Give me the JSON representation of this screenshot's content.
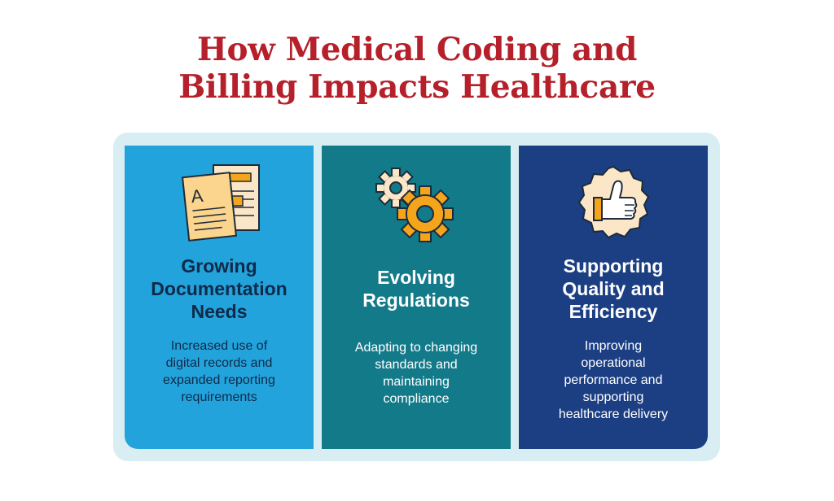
{
  "title": {
    "line1": "How Medical Coding and",
    "line2": "Billing Impacts Healthcare"
  },
  "cards": [
    {
      "icon": "documents-icon",
      "heading": [
        "Growing",
        "Documentation",
        "Needs"
      ],
      "description": [
        "Increased use of",
        "digital records and",
        "expanded reporting",
        "requirements"
      ]
    },
    {
      "icon": "gears-icon",
      "heading": [
        "Evolving",
        "Regulations"
      ],
      "description": [
        "Adapting to changing",
        "standards and",
        "maintaining",
        "compliance"
      ]
    },
    {
      "icon": "thumbs-up-icon",
      "heading": [
        "Supporting",
        "Quality and",
        "Efficiency"
      ],
      "description": [
        "Improving",
        "operational",
        "performance and",
        "supporting",
        "healthcare delivery"
      ]
    }
  ],
  "colors": {
    "title": "#b5202a",
    "frame": "#d9eef2",
    "card1": "#23a3db",
    "card2": "#137a8a",
    "card3": "#1c3f83",
    "icon_accent": "#f4a51c"
  }
}
